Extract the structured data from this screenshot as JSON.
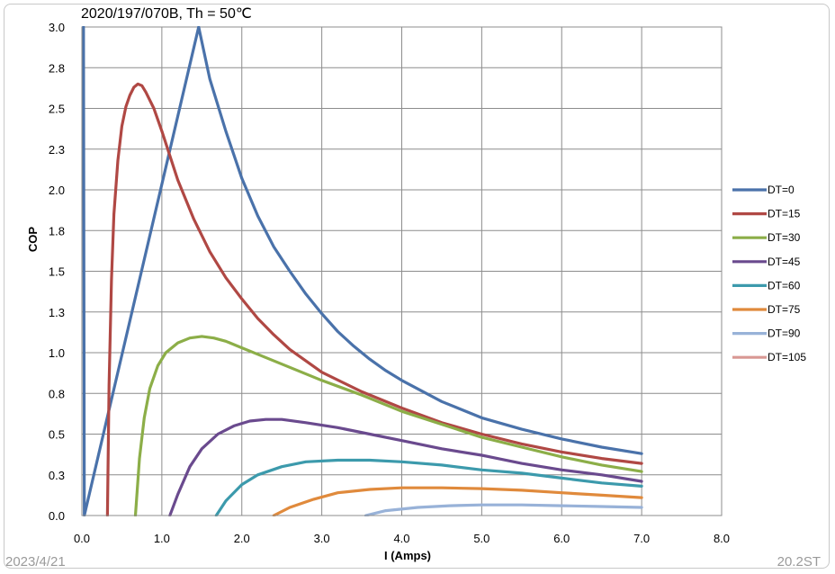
{
  "chart_data": {
    "type": "line",
    "title": "2020/197/070B, Th = 50℃",
    "xlabel": "I (Amps)",
    "ylabel": "COP",
    "xlim": [
      0,
      8
    ],
    "ylim": [
      0,
      3
    ],
    "x_ticks": [
      "0.0",
      "1.0",
      "2.0",
      "3.0",
      "4.0",
      "5.0",
      "6.0",
      "7.0",
      "8.0"
    ],
    "y_ticks": [
      "0.0",
      "0.3",
      "0.5",
      "0.8",
      "1.0",
      "1.3",
      "1.5",
      "1.8",
      "2.0",
      "2.3",
      "2.5",
      "2.8",
      "3.0"
    ],
    "grid": true,
    "legend_position": "right",
    "series": [
      {
        "name": "DT=0",
        "color": "#4a72aa",
        "points": [
          [
            0.02,
            3.0
          ],
          [
            0.03,
            0.0
          ],
          [
            1.46,
            3.0
          ],
          [
            1.6,
            2.68
          ],
          [
            1.8,
            2.36
          ],
          [
            2.0,
            2.07
          ],
          [
            2.2,
            1.84
          ],
          [
            2.4,
            1.65
          ],
          [
            2.6,
            1.5
          ],
          [
            2.8,
            1.36
          ],
          [
            3.0,
            1.24
          ],
          [
            3.2,
            1.13
          ],
          [
            3.4,
            1.04
          ],
          [
            3.6,
            0.96
          ],
          [
            3.8,
            0.89
          ],
          [
            4.0,
            0.83
          ],
          [
            4.5,
            0.7
          ],
          [
            5.0,
            0.6
          ],
          [
            5.5,
            0.53
          ],
          [
            6.0,
            0.47
          ],
          [
            6.5,
            0.42
          ],
          [
            7.0,
            0.38
          ]
        ]
      },
      {
        "name": "DT=15",
        "color": "#b04844",
        "points": [
          [
            0.32,
            0.0
          ],
          [
            0.34,
            0.8
          ],
          [
            0.37,
            1.45
          ],
          [
            0.4,
            1.85
          ],
          [
            0.45,
            2.18
          ],
          [
            0.5,
            2.39
          ],
          [
            0.55,
            2.51
          ],
          [
            0.6,
            2.58
          ],
          [
            0.65,
            2.63
          ],
          [
            0.7,
            2.65
          ],
          [
            0.75,
            2.64
          ],
          [
            0.8,
            2.6
          ],
          [
            0.9,
            2.5
          ],
          [
            1.0,
            2.36
          ],
          [
            1.2,
            2.06
          ],
          [
            1.4,
            1.82
          ],
          [
            1.6,
            1.62
          ],
          [
            1.8,
            1.46
          ],
          [
            2.0,
            1.33
          ],
          [
            2.2,
            1.21
          ],
          [
            2.4,
            1.11
          ],
          [
            2.6,
            1.02
          ],
          [
            2.8,
            0.95
          ],
          [
            3.0,
            0.88
          ],
          [
            3.5,
            0.76
          ],
          [
            4.0,
            0.66
          ],
          [
            4.5,
            0.57
          ],
          [
            5.0,
            0.5
          ],
          [
            5.5,
            0.44
          ],
          [
            6.0,
            0.39
          ],
          [
            6.5,
            0.35
          ],
          [
            7.0,
            0.32
          ]
        ]
      },
      {
        "name": "DT=30",
        "color": "#8cae48",
        "points": [
          [
            0.67,
            0.0
          ],
          [
            0.72,
            0.35
          ],
          [
            0.78,
            0.6
          ],
          [
            0.85,
            0.78
          ],
          [
            0.95,
            0.92
          ],
          [
            1.05,
            1.0
          ],
          [
            1.2,
            1.06
          ],
          [
            1.35,
            1.09
          ],
          [
            1.5,
            1.1
          ],
          [
            1.65,
            1.09
          ],
          [
            1.8,
            1.07
          ],
          [
            2.0,
            1.03
          ],
          [
            2.2,
            0.99
          ],
          [
            2.5,
            0.93
          ],
          [
            3.0,
            0.83
          ],
          [
            3.5,
            0.74
          ],
          [
            4.0,
            0.64
          ],
          [
            4.5,
            0.56
          ],
          [
            5.0,
            0.48
          ],
          [
            5.5,
            0.42
          ],
          [
            6.0,
            0.36
          ],
          [
            6.5,
            0.31
          ],
          [
            7.0,
            0.27
          ]
        ]
      },
      {
        "name": "DT=45",
        "color": "#6a4a8e",
        "points": [
          [
            1.1,
            0.0
          ],
          [
            1.2,
            0.13
          ],
          [
            1.35,
            0.3
          ],
          [
            1.5,
            0.41
          ],
          [
            1.7,
            0.5
          ],
          [
            1.9,
            0.55
          ],
          [
            2.1,
            0.58
          ],
          [
            2.3,
            0.59
          ],
          [
            2.5,
            0.59
          ],
          [
            2.8,
            0.57
          ],
          [
            3.2,
            0.54
          ],
          [
            3.6,
            0.5
          ],
          [
            4.0,
            0.46
          ],
          [
            4.5,
            0.41
          ],
          [
            5.0,
            0.37
          ],
          [
            5.5,
            0.32
          ],
          [
            6.0,
            0.28
          ],
          [
            6.5,
            0.25
          ],
          [
            7.0,
            0.21
          ]
        ]
      },
      {
        "name": "DT=60",
        "color": "#3c9aac",
        "points": [
          [
            1.68,
            0.0
          ],
          [
            1.8,
            0.09
          ],
          [
            2.0,
            0.19
          ],
          [
            2.2,
            0.25
          ],
          [
            2.5,
            0.3
          ],
          [
            2.8,
            0.33
          ],
          [
            3.2,
            0.34
          ],
          [
            3.6,
            0.34
          ],
          [
            4.0,
            0.33
          ],
          [
            4.5,
            0.31
          ],
          [
            5.0,
            0.28
          ],
          [
            5.5,
            0.26
          ],
          [
            6.0,
            0.23
          ],
          [
            6.5,
            0.2
          ],
          [
            7.0,
            0.18
          ]
        ]
      },
      {
        "name": "DT=75",
        "color": "#e08a3c",
        "points": [
          [
            2.4,
            0.0
          ],
          [
            2.6,
            0.05
          ],
          [
            2.9,
            0.1
          ],
          [
            3.2,
            0.14
          ],
          [
            3.6,
            0.16
          ],
          [
            4.0,
            0.17
          ],
          [
            4.5,
            0.17
          ],
          [
            5.0,
            0.165
          ],
          [
            5.5,
            0.155
          ],
          [
            6.0,
            0.14
          ],
          [
            6.5,
            0.125
          ],
          [
            7.0,
            0.11
          ]
        ]
      },
      {
        "name": "DT=90",
        "color": "#98b2d8",
        "points": [
          [
            3.55,
            0.0
          ],
          [
            3.8,
            0.03
          ],
          [
            4.2,
            0.05
          ],
          [
            4.6,
            0.06
          ],
          [
            5.0,
            0.065
          ],
          [
            5.5,
            0.065
          ],
          [
            6.0,
            0.06
          ],
          [
            6.5,
            0.055
          ],
          [
            7.0,
            0.05
          ]
        ]
      },
      {
        "name": "DT=105",
        "color": "#d99894",
        "points": []
      }
    ]
  },
  "footer": {
    "left": "2023/4/21",
    "right": "20.2ST"
  }
}
